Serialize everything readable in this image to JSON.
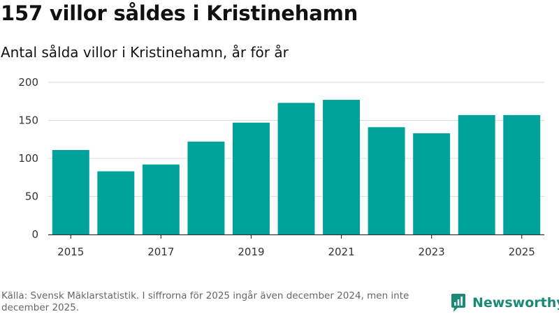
{
  "title": "157 villor såldes i Kristinehamn",
  "subtitle": "Antal sålda villor i Kristinehamn, år för år",
  "footer": "Källa: Svensk Mäklarstatistik. I siffrorna för 2025 ingår även december 2024, men inte december 2025.",
  "brand": {
    "name": "Newsworthy",
    "icon": "newsworthy-logo-icon",
    "color": "#1a8a76"
  },
  "colors": {
    "bar": "#00a39a",
    "grid": "#dddddd",
    "axis": "#333333"
  },
  "chart_data": {
    "type": "bar",
    "title": "157 villor såldes i Kristinehamn",
    "subtitle": "Antal sålda villor i Kristinehamn, år för år",
    "xlabel": "",
    "ylabel": "",
    "categories": [
      "2015",
      "2016",
      "2017",
      "2018",
      "2019",
      "2020",
      "2021",
      "2022",
      "2023",
      "2024",
      "2025"
    ],
    "values": [
      111,
      83,
      92,
      122,
      147,
      173,
      177,
      141,
      133,
      157,
      157
    ],
    "ylim": [
      0,
      200
    ],
    "yticks": [
      0,
      50,
      100,
      150,
      200
    ],
    "xticks": [
      "2015",
      "2017",
      "2019",
      "2021",
      "2023",
      "2025"
    ],
    "grid": true,
    "legend": "none"
  }
}
